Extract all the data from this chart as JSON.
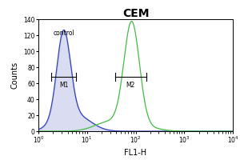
{
  "title": "CEM",
  "title_fontsize": 10,
  "title_fontweight": "bold",
  "xlabel": "FL1-H",
  "ylabel": "Counts",
  "xlabel_fontsize": 7,
  "ylabel_fontsize": 7,
  "xlim_log": [
    1.0,
    10000.0
  ],
  "ylim": [
    0,
    140
  ],
  "yticks": [
    0,
    20,
    40,
    60,
    80,
    100,
    120,
    140
  ],
  "control_label": "control",
  "control_color": "#3344bb",
  "sample_color": "#44bb44",
  "background_color": "#ffffff",
  "m1_label": "M1",
  "m2_label": "M2",
  "control_peak_x_log": 0.52,
  "sample_peak_x_log": 1.92,
  "control_peak_y": 110,
  "sample_peak_y": 132,
  "control_sigma_log": 0.14,
  "sample_sigma_log": 0.16
}
